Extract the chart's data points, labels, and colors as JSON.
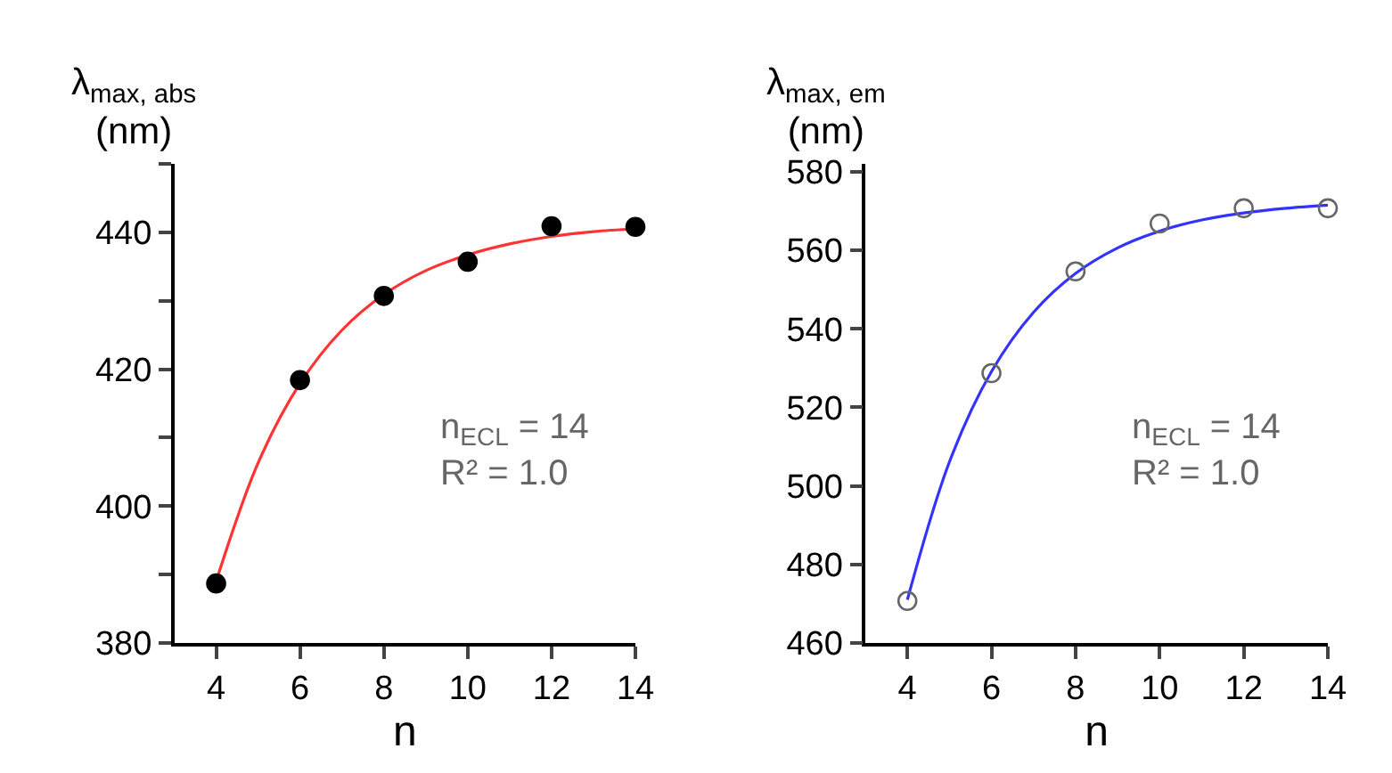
{
  "chart_data": [
    {
      "type": "scatter",
      "xlabel": "n",
      "ylabel": "λ$_{max, abs}$\n(nm)",
      "annotations": [
        "n$_{ECL}$ = 14\nR² = 1.0"
      ],
      "xlim": [
        3,
        14
      ],
      "xticks": [
        4,
        6,
        8,
        10,
        12,
        14
      ],
      "ylim": [
        380,
        450
      ],
      "yticks": [
        380,
        {
          "value": 390,
          "label": null
        },
        400,
        {
          "value": 410,
          "label": null
        },
        420,
        {
          "value": 430,
          "label": null
        },
        440,
        {
          "value": 450,
          "label": null
        }
      ],
      "series": [
        {
          "type": "line",
          "color": "#ff3333",
          "marker": "none",
          "x": [
            4,
            5,
            6,
            7,
            8,
            9,
            10,
            11,
            12,
            13,
            14
          ],
          "values": [
            389,
            406.3,
            417.9,
            425.7,
            430.9,
            434.4,
            436.7,
            438.3,
            439.4,
            440.1,
            440.5
          ]
        },
        {
          "color": "#000000",
          "marker": "circle",
          "x": [
            4,
            6,
            8,
            10,
            12,
            14
          ],
          "values": [
            388.7,
            418.4,
            430.7,
            435.7,
            440.9,
            440.8
          ]
        }
      ]
    },
    {
      "type": "scatter",
      "xlabel": "n",
      "ylabel": "λ$_{max, em}$\n(nm)",
      "annotations": [
        "n$_{ECL}$ = 14\nR² = 1.0"
      ],
      "xlim": [
        3,
        14
      ],
      "xticks": [
        4,
        6,
        8,
        10,
        12,
        14
      ],
      "ylim": [
        460,
        582
      ],
      "yticks": [
        460,
        480,
        500,
        520,
        540,
        560,
        580
      ],
      "series": [
        {
          "type": "line",
          "color": "#3333ff",
          "marker": "none",
          "x": [
            4,
            5,
            6,
            7,
            8,
            9,
            10,
            11,
            12,
            13,
            14
          ],
          "values": [
            471,
            506.1,
            529.1,
            544.2,
            554.1,
            560.6,
            564.9,
            567.7,
            569.5,
            570.7,
            571.5
          ]
        },
        {
          "color": "#666666",
          "marker": "circle-open",
          "x": [
            4,
            6,
            8,
            10,
            12,
            14
          ],
          "values": [
            470.7,
            528.7,
            554.6,
            566.8,
            570.7,
            570.7
          ]
        }
      ]
    }
  ]
}
